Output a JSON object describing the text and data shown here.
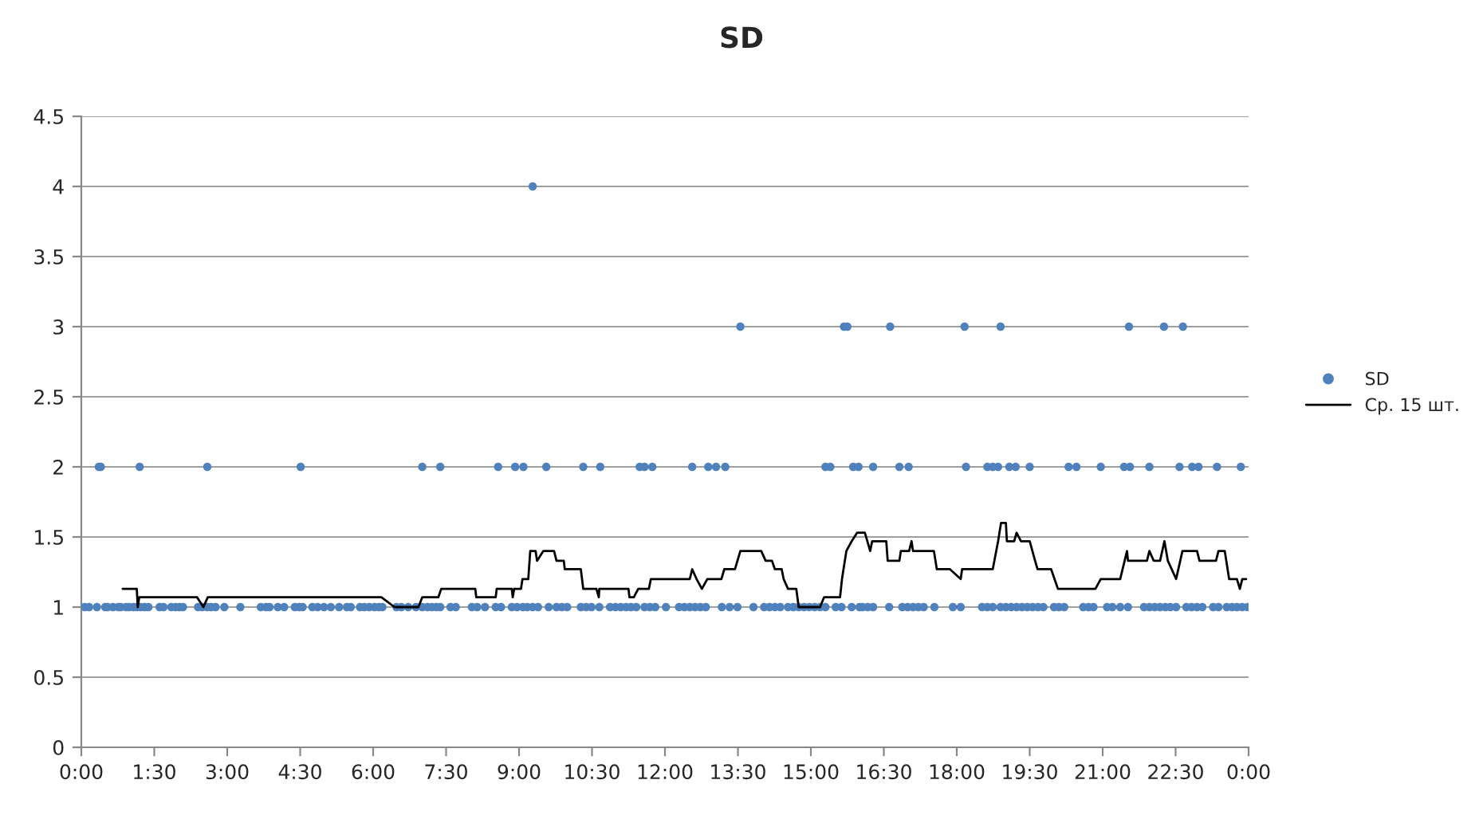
{
  "chart_data": {
    "type": "scatter",
    "title": "SD",
    "xlim": [
      0,
      24
    ],
    "xticks": [
      {
        "value": 0,
        "label": "0:00"
      },
      {
        "value": 1.5,
        "label": "1:30"
      },
      {
        "value": 3,
        "label": "3:00"
      },
      {
        "value": 4.5,
        "label": "4:30"
      },
      {
        "value": 6,
        "label": "6:00"
      },
      {
        "value": 7.5,
        "label": "7:30"
      },
      {
        "value": 9,
        "label": "9:00"
      },
      {
        "value": 10.5,
        "label": "10:30"
      },
      {
        "value": 12,
        "label": "12:00"
      },
      {
        "value": 13.5,
        "label": "13:30"
      },
      {
        "value": 15,
        "label": "15:00"
      },
      {
        "value": 16.5,
        "label": "16:30"
      },
      {
        "value": 18,
        "label": "18:00"
      },
      {
        "value": 19.5,
        "label": "19:30"
      },
      {
        "value": 21,
        "label": "21:00"
      },
      {
        "value": 22.5,
        "label": "22:30"
      },
      {
        "value": 24,
        "label": "0:00"
      }
    ],
    "ylim": [
      0,
      4.5
    ],
    "yticks": [
      0,
      0.5,
      1,
      1.5,
      2,
      2.5,
      3,
      3.5,
      4,
      4.5
    ],
    "grid": "y",
    "legend": "right",
    "series": [
      {
        "name": "SD",
        "marker": "circle",
        "color": "#4f81bd",
        "x": [
          0.36,
          0.4,
          1.2,
          2.59,
          4.51,
          7.01,
          7.38,
          8.57,
          8.92,
          9.09,
          9.56,
          10.32,
          10.67,
          11.48,
          11.58,
          11.74,
          12.56,
          12.89,
          13.05,
          13.24,
          15.3,
          15.4,
          15.87,
          15.98,
          16.28,
          16.82,
          17.01,
          18.19,
          18.63,
          18.74,
          18.85,
          19.08,
          19.21,
          19.5,
          20.3,
          20.46,
          20.96,
          21.44,
          21.56,
          21.96,
          22.58,
          22.84,
          22.97,
          23.35,
          23.84,
          13.55,
          15.68,
          15.75,
          16.63,
          18.16,
          18.9,
          21.54,
          22.26,
          22.65,
          9.28,
          0.07,
          0.16,
          0.32,
          0.49,
          0.54,
          0.65,
          0.76,
          0.81,
          0.92,
          0.98,
          1.07,
          1.14,
          1.22,
          1.3,
          1.38,
          1.61,
          1.69,
          1.85,
          1.94,
          2.02,
          2.09,
          2.4,
          2.49,
          2.59,
          2.67,
          2.76,
          2.94,
          3.27,
          3.69,
          3.8,
          3.87,
          4.04,
          4.17,
          4.39,
          4.48,
          4.55,
          4.75,
          4.86,
          4.99,
          5.13,
          5.3,
          5.46,
          5.54,
          5.73,
          5.82,
          5.92,
          6.03,
          6.12,
          6.19,
          6.48,
          6.58,
          6.72,
          6.88,
          7.01,
          7.12,
          7.21,
          7.3,
          7.38,
          7.59,
          7.7,
          8.03,
          8.14,
          8.3,
          8.52,
          8.63,
          8.85,
          8.96,
          9.08,
          9.17,
          9.28,
          9.39,
          9.61,
          9.77,
          9.88,
          9.99,
          10.27,
          10.38,
          10.49,
          10.65,
          10.87,
          10.98,
          11.09,
          11.2,
          11.3,
          11.41,
          11.58,
          11.69,
          11.8,
          12.02,
          12.29,
          12.4,
          12.51,
          12.62,
          12.73,
          12.84,
          13.17,
          13.33,
          13.49,
          13.82,
          14.04,
          14.15,
          14.26,
          14.37,
          14.53,
          14.64,
          14.75,
          14.86,
          14.97,
          15.08,
          15.19,
          15.3,
          15.51,
          15.63,
          15.84,
          16.0,
          16.06,
          16.17,
          16.28,
          16.61,
          16.88,
          16.99,
          17.1,
          17.21,
          17.32,
          17.54,
          17.92,
          18.08,
          18.52,
          18.63,
          18.74,
          18.9,
          19.01,
          19.12,
          19.23,
          19.34,
          19.45,
          19.56,
          19.67,
          19.78,
          20.0,
          20.1,
          20.21,
          20.6,
          20.71,
          20.81,
          21.09,
          21.2,
          21.36,
          21.52,
          21.85,
          21.96,
          22.07,
          22.18,
          22.29,
          22.39,
          22.51,
          22.72,
          22.83,
          22.94,
          23.05,
          23.27,
          23.38,
          23.55,
          23.66,
          23.76,
          23.87,
          23.98
        ],
        "values": [
          2,
          2,
          2,
          2,
          2,
          2,
          2,
          2,
          2,
          2,
          2,
          2,
          2,
          2,
          2,
          2,
          2,
          2,
          2,
          2,
          2,
          2,
          2,
          2,
          2,
          2,
          2,
          2,
          2,
          2,
          2,
          2,
          2,
          2,
          2,
          2,
          2,
          2,
          2,
          2,
          2,
          2,
          2,
          2,
          2,
          3,
          3,
          3,
          3,
          3,
          3,
          3,
          3,
          3,
          4,
          1,
          1,
          1,
          1,
          1,
          1,
          1,
          1,
          1,
          1,
          1,
          1,
          1,
          1,
          1,
          1,
          1,
          1,
          1,
          1,
          1,
          1,
          1,
          1,
          1,
          1,
          1,
          1,
          1,
          1,
          1,
          1,
          1,
          1,
          1,
          1,
          1,
          1,
          1,
          1,
          1,
          1,
          1,
          1,
          1,
          1,
          1,
          1,
          1,
          1,
          1,
          1,
          1,
          1,
          1,
          1,
          1,
          1,
          1,
          1,
          1,
          1,
          1,
          1,
          1,
          1,
          1,
          1,
          1,
          1,
          1,
          1,
          1,
          1,
          1,
          1,
          1,
          1,
          1,
          1,
          1,
          1,
          1,
          1,
          1,
          1,
          1,
          1,
          1,
          1,
          1,
          1,
          1,
          1,
          1,
          1,
          1,
          1,
          1,
          1,
          1,
          1,
          1,
          1,
          1,
          1,
          1,
          1,
          1,
          1,
          1,
          1,
          1,
          1,
          1,
          1,
          1,
          1,
          1,
          1,
          1,
          1,
          1,
          1,
          1,
          1,
          1,
          1,
          1,
          1,
          1,
          1,
          1,
          1,
          1,
          1,
          1,
          1,
          1,
          1,
          1,
          1,
          1,
          1,
          1,
          1,
          1,
          1,
          1,
          1,
          1,
          1,
          1,
          1,
          1,
          1,
          1,
          1,
          1,
          1,
          1,
          1,
          1,
          1,
          1,
          1,
          1
        ]
      },
      {
        "name": "Ср. 15 шт.",
        "type": "line",
        "marker": "none",
        "line_style": "solid",
        "color": "#000000",
        "x": [
          0.85,
          1.14,
          1.16,
          1.19,
          2.38,
          2.51,
          2.6,
          6.17,
          6.44,
          6.93,
          7.01,
          7.34,
          7.4,
          8.1,
          8.12,
          8.52,
          8.54,
          8.85,
          8.87,
          8.9,
          9.04,
          9.07,
          9.19,
          9.23,
          9.34,
          9.37,
          9.5,
          9.72,
          9.77,
          9.92,
          9.94,
          10.27,
          10.32,
          10.59,
          10.64,
          10.65,
          11.25,
          11.27,
          11.36,
          11.45,
          11.67,
          11.71,
          12.51,
          12.56,
          12.65,
          12.76,
          12.87,
          13.16,
          13.22,
          13.44,
          13.55,
          13.98,
          14.07,
          14.2,
          14.26,
          14.4,
          14.44,
          14.53,
          14.7,
          14.75,
          15.19,
          15.27,
          15.6,
          15.64,
          15.73,
          15.84,
          15.95,
          16.11,
          16.22,
          16.26,
          16.55,
          16.58,
          16.82,
          16.85,
          17.02,
          17.07,
          17.1,
          17.53,
          17.59,
          17.86,
          18.08,
          18.11,
          18.74,
          18.85,
          18.91,
          19.01,
          19.03,
          19.18,
          19.23,
          19.32,
          19.5,
          19.61,
          19.66,
          19.94,
          20.08,
          20.85,
          20.96,
          21.36,
          21.5,
          21.52,
          21.91,
          21.96,
          22.05,
          22.18,
          22.27,
          22.34,
          22.51,
          22.64,
          22.94,
          22.99,
          23.33,
          23.38,
          23.51,
          23.6,
          23.76,
          23.82,
          23.87,
          23.95
        ],
        "values": [
          1.13,
          1.13,
          1.0,
          1.07,
          1.07,
          1.0,
          1.07,
          1.07,
          1.0,
          1.0,
          1.07,
          1.07,
          1.13,
          1.13,
          1.07,
          1.07,
          1.13,
          1.13,
          1.07,
          1.13,
          1.13,
          1.2,
          1.2,
          1.4,
          1.4,
          1.33,
          1.4,
          1.4,
          1.33,
          1.33,
          1.27,
          1.27,
          1.13,
          1.13,
          1.07,
          1.13,
          1.13,
          1.07,
          1.07,
          1.13,
          1.13,
          1.2,
          1.2,
          1.27,
          1.2,
          1.13,
          1.2,
          1.2,
          1.27,
          1.27,
          1.4,
          1.4,
          1.33,
          1.33,
          1.27,
          1.27,
          1.2,
          1.13,
          1.13,
          1.0,
          1.0,
          1.07,
          1.07,
          1.2,
          1.4,
          1.47,
          1.53,
          1.53,
          1.4,
          1.47,
          1.47,
          1.33,
          1.33,
          1.4,
          1.4,
          1.47,
          1.4,
          1.4,
          1.27,
          1.27,
          1.2,
          1.27,
          1.27,
          1.47,
          1.6,
          1.6,
          1.47,
          1.47,
          1.53,
          1.47,
          1.47,
          1.33,
          1.27,
          1.27,
          1.13,
          1.13,
          1.2,
          1.2,
          1.4,
          1.33,
          1.33,
          1.4,
          1.33,
          1.33,
          1.47,
          1.33,
          1.2,
          1.4,
          1.4,
          1.33,
          1.33,
          1.4,
          1.4,
          1.2,
          1.2,
          1.13,
          1.2,
          1.2
        ]
      }
    ]
  }
}
